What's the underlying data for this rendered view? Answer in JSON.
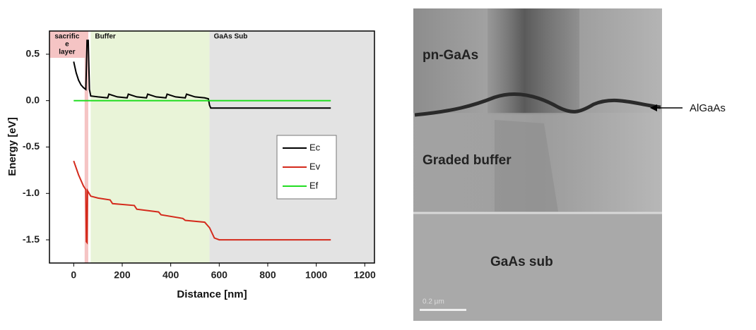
{
  "chart_data": {
    "type": "line",
    "x_label": "Distance [nm]",
    "y_label": "Energy [eV]",
    "xlim": [
      -100,
      1240
    ],
    "ylim": [
      -1.75,
      0.75
    ],
    "xticks": [
      0,
      200,
      400,
      600,
      800,
      1000,
      1200
    ],
    "yticks": [
      0.5,
      {
        "value": 0,
        "label": "0.0"
      },
      -0.5,
      {
        "value": -1,
        "label": "-1.0"
      },
      -1.5
    ],
    "regions": [
      {
        "label_lines": [
          "sacrific",
          "e",
          "layer"
        ],
        "start": 45,
        "end": 60,
        "color": "#f5c4c4"
      },
      {
        "label_lines": [
          "Buffer"
        ],
        "start": 70,
        "end": 560,
        "color": "#e9f4d8"
      },
      {
        "label_lines": [
          "GaAs Sub"
        ],
        "start": 560,
        "end": 1240,
        "color": "#e3e3e3"
      }
    ],
    "series": [
      {
        "name": "Ec",
        "color": "#000000",
        "x": [
          0,
          10,
          20,
          30,
          40,
          50,
          55,
          60,
          65,
          70,
          100,
          140,
          145,
          180,
          220,
          225,
          260,
          300,
          305,
          340,
          380,
          385,
          420,
          460,
          465,
          500,
          540,
          555,
          560,
          565,
          600,
          1060
        ],
        "values": [
          0.42,
          0.3,
          0.22,
          0.17,
          0.14,
          0.12,
          0.65,
          0.65,
          0.12,
          0.05,
          0.04,
          0.03,
          0.07,
          0.04,
          0.03,
          0.07,
          0.04,
          0.03,
          0.07,
          0.04,
          0.03,
          0.07,
          0.04,
          0.03,
          0.07,
          0.04,
          0.03,
          0.02,
          -0.05,
          -0.08,
          -0.08,
          -0.08
        ]
      },
      {
        "name": "Ev",
        "color": "#d42a1c",
        "x": [
          0,
          20,
          40,
          50,
          52,
          55,
          57,
          70,
          100,
          150,
          160,
          250,
          260,
          350,
          360,
          450,
          460,
          540,
          560,
          580,
          600,
          1060
        ],
        "values": [
          -0.65,
          -0.8,
          -0.92,
          -0.96,
          -1.52,
          -1.53,
          -0.97,
          -1.03,
          -1.05,
          -1.07,
          -1.11,
          -1.13,
          -1.17,
          -1.2,
          -1.23,
          -1.27,
          -1.29,
          -1.31,
          -1.37,
          -1.48,
          -1.5,
          -1.5
        ]
      },
      {
        "name": "Ef",
        "color": "#22dd22",
        "x": [
          0,
          1060
        ],
        "values": [
          0,
          0
        ]
      }
    ]
  },
  "micrograph": {
    "labels": [
      "pn-GaAs",
      "Graded buffer",
      "GaAs sub"
    ],
    "callout": "AlGaAs",
    "scale_bar": "0.2 µm"
  }
}
